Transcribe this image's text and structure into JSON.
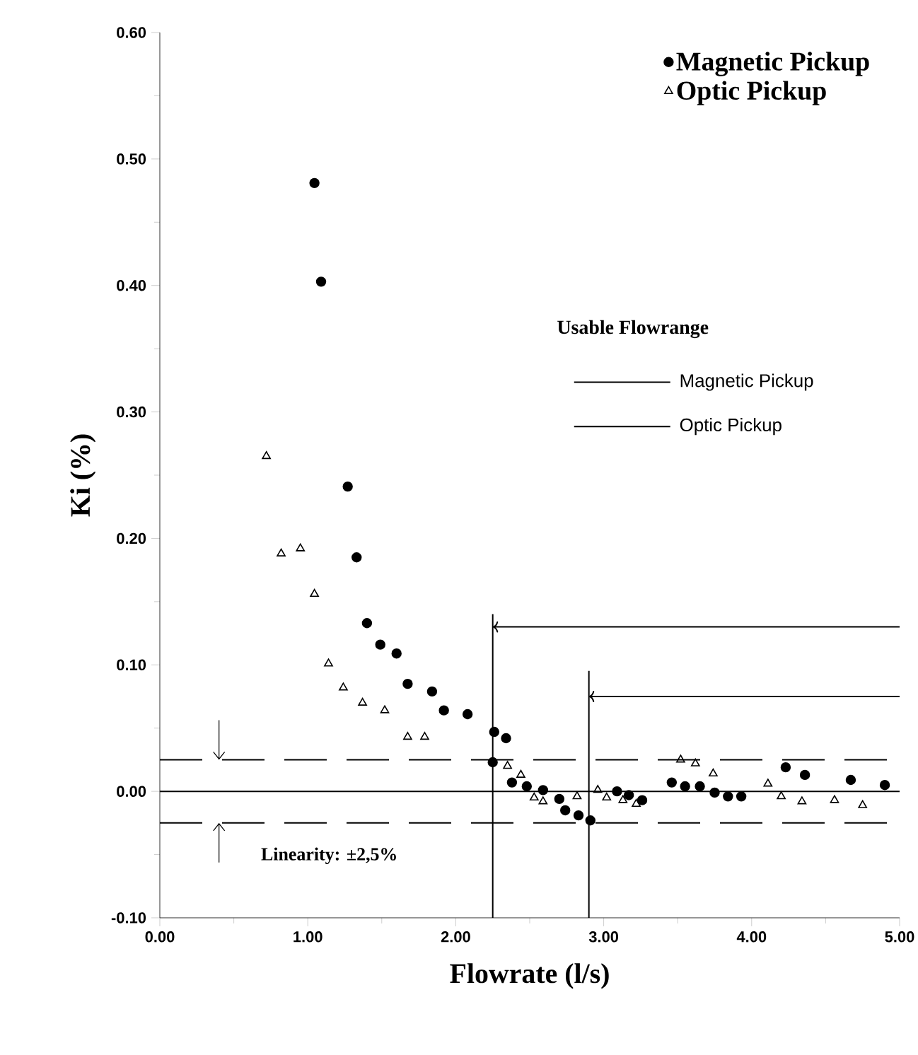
{
  "chart_data": {
    "type": "scatter",
    "xlabel": "Flowrate (l/s)",
    "ylabel": "Ki (%)",
    "xlim": [
      0,
      5
    ],
    "ylim": [
      -0.1,
      0.6
    ],
    "xticks": [
      {
        "value": 0,
        "label": "0.00"
      },
      {
        "value": 1,
        "label": "1.00"
      },
      {
        "value": 2,
        "label": "2.00"
      },
      {
        "value": 3,
        "label": "3.00"
      },
      {
        "value": 4,
        "label": "4.00"
      },
      {
        "value": 5,
        "label": "5.00"
      }
    ],
    "yticks": [
      {
        "value": -0.1,
        "label": "-0.10"
      },
      {
        "value": 0,
        "label": "0.00"
      },
      {
        "value": 0.1,
        "label": "0.10"
      },
      {
        "value": 0.2,
        "label": "0.20"
      },
      {
        "value": 0.3,
        "label": "0.30"
      },
      {
        "value": 0.4,
        "label": "0.40"
      },
      {
        "value": 0.5,
        "label": "0.50"
      },
      {
        "value": 0.6,
        "label": "0.60"
      }
    ],
    "legend": "top right",
    "series": [
      {
        "name": "Magnetic Pickup",
        "color": "#000000",
        "marker": "circle",
        "x": [
          1.045,
          1.09,
          1.27,
          1.33,
          1.4,
          1.49,
          1.6,
          1.675,
          1.84,
          1.92,
          2.08,
          2.25,
          2.26,
          2.34,
          2.38,
          2.48,
          2.59,
          2.7,
          2.74,
          2.83,
          2.91,
          3.09,
          3.17,
          3.26,
          3.46,
          3.55,
          3.65,
          3.75,
          3.84,
          3.93,
          4.23,
          4.36,
          4.67,
          4.9
        ],
        "values": [
          0.481,
          0.403,
          0.241,
          0.185,
          0.133,
          0.116,
          0.109,
          0.085,
          0.079,
          0.064,
          0.061,
          0.023,
          0.047,
          0.042,
          0.007,
          0.004,
          0.001,
          -0.006,
          -0.015,
          -0.019,
          -0.023,
          0.0,
          -0.003,
          -0.007,
          0.007,
          0.004,
          0.004,
          -0.001,
          -0.004,
          -0.004,
          0.019,
          0.013,
          0.009,
          0.005
        ]
      },
      {
        "name": "Optic Pickup",
        "color": "#000000",
        "marker": "triangle",
        "x": [
          0.72,
          0.82,
          0.95,
          1.045,
          1.14,
          1.24,
          1.37,
          1.52,
          1.675,
          1.79,
          2.35,
          2.44,
          2.53,
          2.59,
          2.82,
          2.96,
          3.02,
          3.13,
          3.22,
          3.52,
          3.62,
          3.74,
          4.11,
          4.2,
          4.34,
          4.56,
          4.75
        ],
        "values": [
          0.265,
          0.188,
          0.192,
          0.156,
          0.101,
          0.082,
          0.07,
          0.064,
          0.043,
          0.043,
          0.02,
          0.013,
          -0.005,
          -0.008,
          -0.004,
          0.001,
          -0.005,
          -0.007,
          -0.01,
          0.025,
          0.022,
          0.014,
          0.006,
          -0.004,
          -0.008,
          -0.007,
          -0.011
        ]
      },
      {
        "type": "line",
        "color": "#000000",
        "x": [
          2.25,
          5
        ],
        "values": [
          0.13,
          0.13
        ]
      },
      {
        "type": "line",
        "color": "#000000",
        "x": [
          2.9,
          5
        ],
        "values": [
          0.075,
          0.075
        ]
      }
    ],
    "ref_lines": [
      {
        "axis": "y",
        "value": 0,
        "line_style": "solid"
      },
      {
        "axis": "y",
        "value": 0.025,
        "line_style": "dashed"
      },
      {
        "axis": "y",
        "value": -0.025,
        "line_style": "dashed"
      },
      {
        "axis": "x",
        "value": 2.25,
        "line_style": "solid"
      },
      {
        "axis": "x",
        "value": 2.9,
        "line_style": "solid"
      }
    ],
    "annotations": [
      "Usable Flowrange",
      "Linearity: ±2,5%",
      "Magnetic Pickup",
      "Optic Pickup"
    ]
  }
}
